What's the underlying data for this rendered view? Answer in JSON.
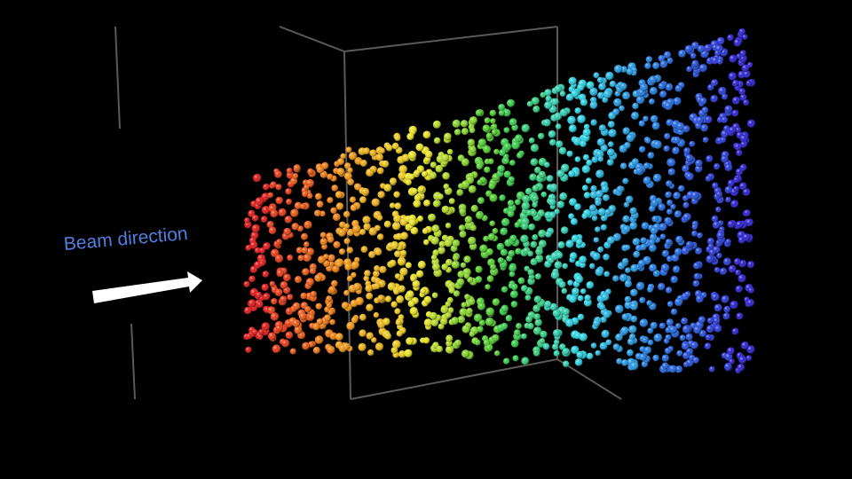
{
  "annotation": {
    "label": "Beam direction"
  },
  "scene": {
    "background_color": "#000000",
    "frame_color": "#5a5a5a",
    "label_color": "#4f7fe0",
    "arrow_color": "#ffffff",
    "color_gradient": [
      "#e01818",
      "#f08a10",
      "#e6e020",
      "#3ac830",
      "#2ad0e0",
      "#2070e0",
      "#2a20d0"
    ],
    "particle_layers": 22
  }
}
